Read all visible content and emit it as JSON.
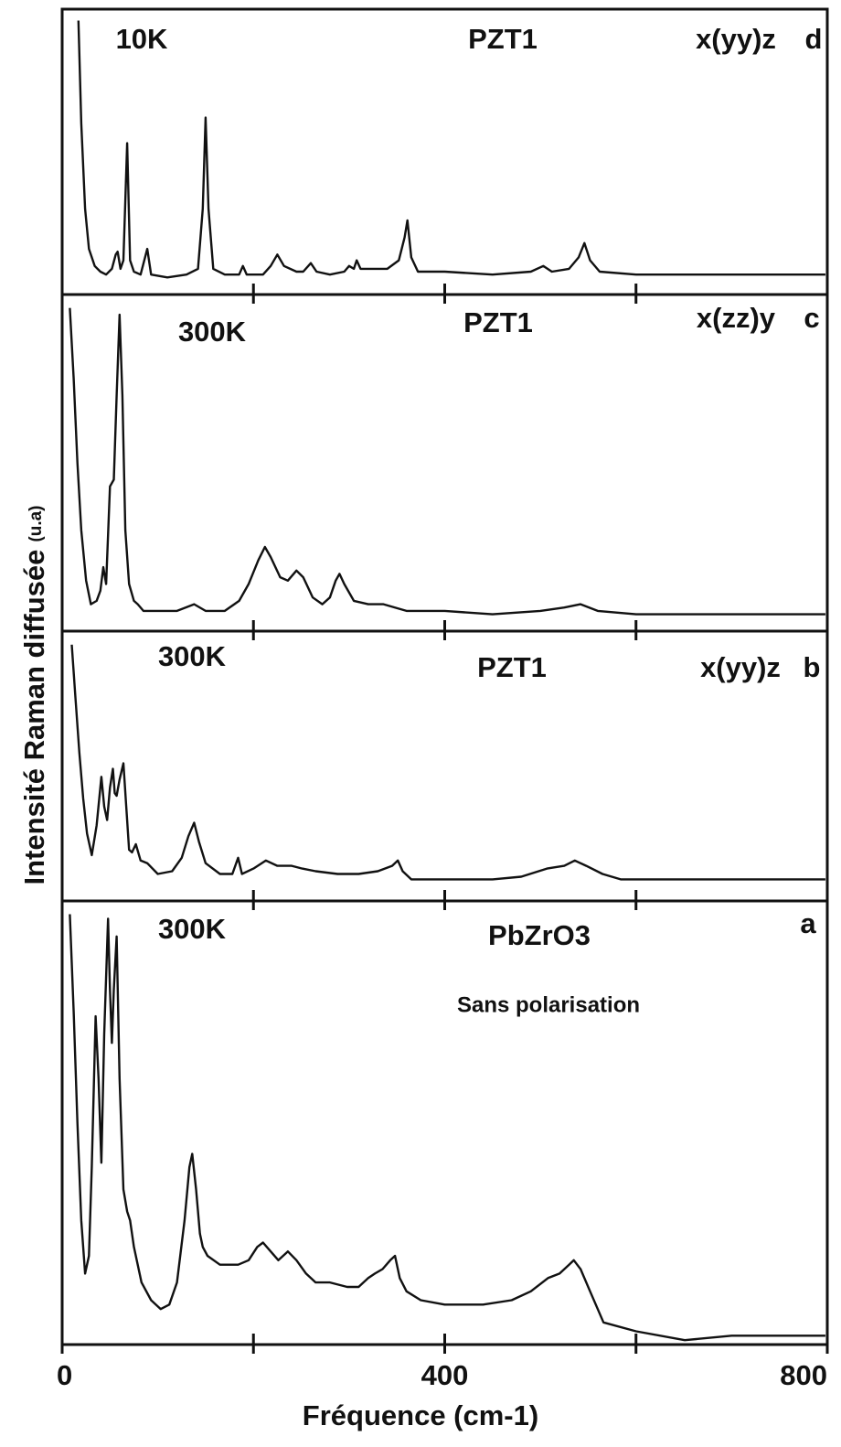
{
  "y_label": "Intensité Raman diffusée",
  "y_unit": "(u.a)",
  "x_label": "Fréquence (cm-1)",
  "chart_data": [
    {
      "type": "line",
      "temperature": "10K",
      "sample": "PZT1",
      "geometry": "x(yy)z",
      "panel": "d",
      "color": "#111111",
      "xlim": [
        0,
        800
      ],
      "ylim": [
        0,
        100
      ],
      "minor_xticks": [
        200,
        400,
        600
      ],
      "x": [
        17,
        20,
        24,
        28,
        34,
        40,
        46,
        52,
        56,
        58,
        61,
        64,
        68,
        71,
        75,
        82,
        89,
        93,
        110,
        130,
        142,
        147,
        150,
        153,
        158,
        170,
        185,
        189,
        193,
        210,
        218,
        225,
        232,
        245,
        252,
        260,
        266,
        280,
        295,
        300,
        305,
        308,
        312,
        325,
        340,
        352,
        358,
        361,
        365,
        372,
        400,
        450,
        490,
        503,
        512,
        530,
        540,
        546,
        552,
        562,
        600,
        650,
        700,
        750,
        798
      ],
      "values": [
        96,
        60,
        30,
        16,
        10,
        8,
        7,
        9,
        14,
        15,
        9,
        12,
        53,
        12,
        8,
        7,
        16,
        7,
        6,
        7,
        9,
        30,
        62,
        30,
        9,
        7,
        7,
        10,
        7,
        7,
        10,
        14,
        10,
        8,
        8,
        11,
        8,
        7,
        8,
        10,
        9,
        12,
        9,
        9,
        9,
        12,
        20,
        26,
        13,
        8,
        8,
        7,
        8,
        10,
        8,
        9,
        13,
        18,
        12,
        8,
        7,
        7,
        7,
        7,
        7
      ]
    },
    {
      "type": "line",
      "temperature": "300K",
      "sample": "PZT1",
      "geometry": "x(zz)y",
      "panel": "c",
      "color": "#111111",
      "xlim": [
        0,
        800
      ],
      "ylim": [
        0,
        100
      ],
      "minor_xticks": [
        200,
        400,
        600
      ],
      "x": [
        8,
        12,
        16,
        20,
        25,
        30,
        36,
        40,
        43,
        46,
        50,
        54,
        57,
        60,
        63,
        66,
        70,
        75,
        79,
        85,
        100,
        120,
        138,
        150,
        170,
        185,
        195,
        205,
        212,
        218,
        228,
        236,
        245,
        252,
        262,
        272,
        280,
        286,
        290,
        295,
        305,
        320,
        336,
        360,
        400,
        450,
        500,
        525,
        542,
        560,
        600,
        700,
        798
      ],
      "values": [
        96,
        75,
        50,
        30,
        15,
        8,
        9,
        12,
        19,
        14,
        43,
        45,
        70,
        94,
        70,
        30,
        14,
        9,
        8,
        6,
        6,
        6,
        8,
        6,
        6,
        9,
        14,
        21,
        25,
        22,
        16,
        15,
        18,
        16,
        10,
        8,
        10,
        15,
        17,
        14,
        9,
        8,
        8,
        6,
        6,
        5,
        6,
        7,
        8,
        6,
        5,
        5,
        5
      ]
    },
    {
      "type": "line",
      "temperature": "300K",
      "sample": "PZT1",
      "geometry": "x(yy)z",
      "panel": "b",
      "color": "#111111",
      "xlim": [
        0,
        800
      ],
      "ylim": [
        0,
        100
      ],
      "minor_xticks": [
        200,
        400,
        600
      ],
      "x": [
        10,
        14,
        18,
        22,
        26,
        31,
        36,
        41,
        44,
        47,
        50,
        53,
        55,
        57,
        60,
        64,
        67,
        70,
        73,
        77,
        82,
        89,
        100,
        115,
        125,
        132,
        138,
        143,
        150,
        165,
        178,
        184,
        188,
        200,
        213,
        225,
        240,
        251,
        265,
        288,
        310,
        330,
        345,
        351,
        356,
        365,
        400,
        450,
        480,
        507,
        525,
        536,
        548,
        565,
        584,
        650,
        700,
        798
      ],
      "values": [
        95,
        75,
        55,
        38,
        25,
        17,
        28,
        46,
        35,
        30,
        42,
        49,
        40,
        39,
        45,
        51,
        35,
        19,
        18,
        21,
        15,
        14,
        10,
        11,
        16,
        24,
        29,
        22,
        14,
        10,
        10,
        16,
        10,
        12,
        15,
        13,
        13,
        12,
        11,
        10,
        10,
        11,
        13,
        15,
        11,
        8,
        8,
        8,
        9,
        12,
        13,
        15,
        13,
        10,
        8,
        8,
        8,
        8
      ]
    },
    {
      "type": "line",
      "temperature": "300K",
      "sample": "PbZrO3",
      "panel": "a",
      "annotation": "Sans polarisation",
      "color": "#111111",
      "xlim": [
        0,
        800
      ],
      "ylim": [
        0,
        100
      ],
      "xticks": [
        0,
        400,
        800
      ],
      "minor_xticks": [
        200,
        600
      ],
      "x": [
        8,
        12,
        16,
        20,
        24,
        28,
        31,
        35,
        38,
        41,
        44,
        48,
        50,
        52,
        54,
        57,
        60,
        64,
        68,
        71,
        75,
        83,
        93,
        103,
        112,
        120,
        128,
        133,
        136,
        140,
        144,
        147,
        152,
        165,
        184,
        195,
        204,
        210,
        218,
        226,
        236,
        245,
        255,
        265,
        280,
        298,
        310,
        320,
        327,
        335,
        343,
        348,
        353,
        360,
        375,
        400,
        440,
        470,
        490,
        508,
        520,
        530,
        535,
        542,
        552,
        566,
        600,
        651,
        700,
        750,
        798
      ],
      "values": [
        97,
        75,
        50,
        28,
        16,
        20,
        40,
        74,
        60,
        41,
        70,
        96,
        80,
        68,
        80,
        92,
        60,
        35,
        30,
        28,
        22,
        14,
        10,
        8,
        9,
        14,
        28,
        40,
        43,
        35,
        25,
        22,
        20,
        18,
        18,
        19,
        22,
        23,
        21,
        19,
        21,
        19,
        16,
        14,
        14,
        13,
        13,
        15,
        16,
        17,
        19,
        20,
        15,
        12,
        10,
        9,
        9,
        10,
        12,
        15,
        16,
        18,
        19,
        17,
        12,
        5,
        3,
        1,
        2,
        2,
        2
      ]
    }
  ]
}
